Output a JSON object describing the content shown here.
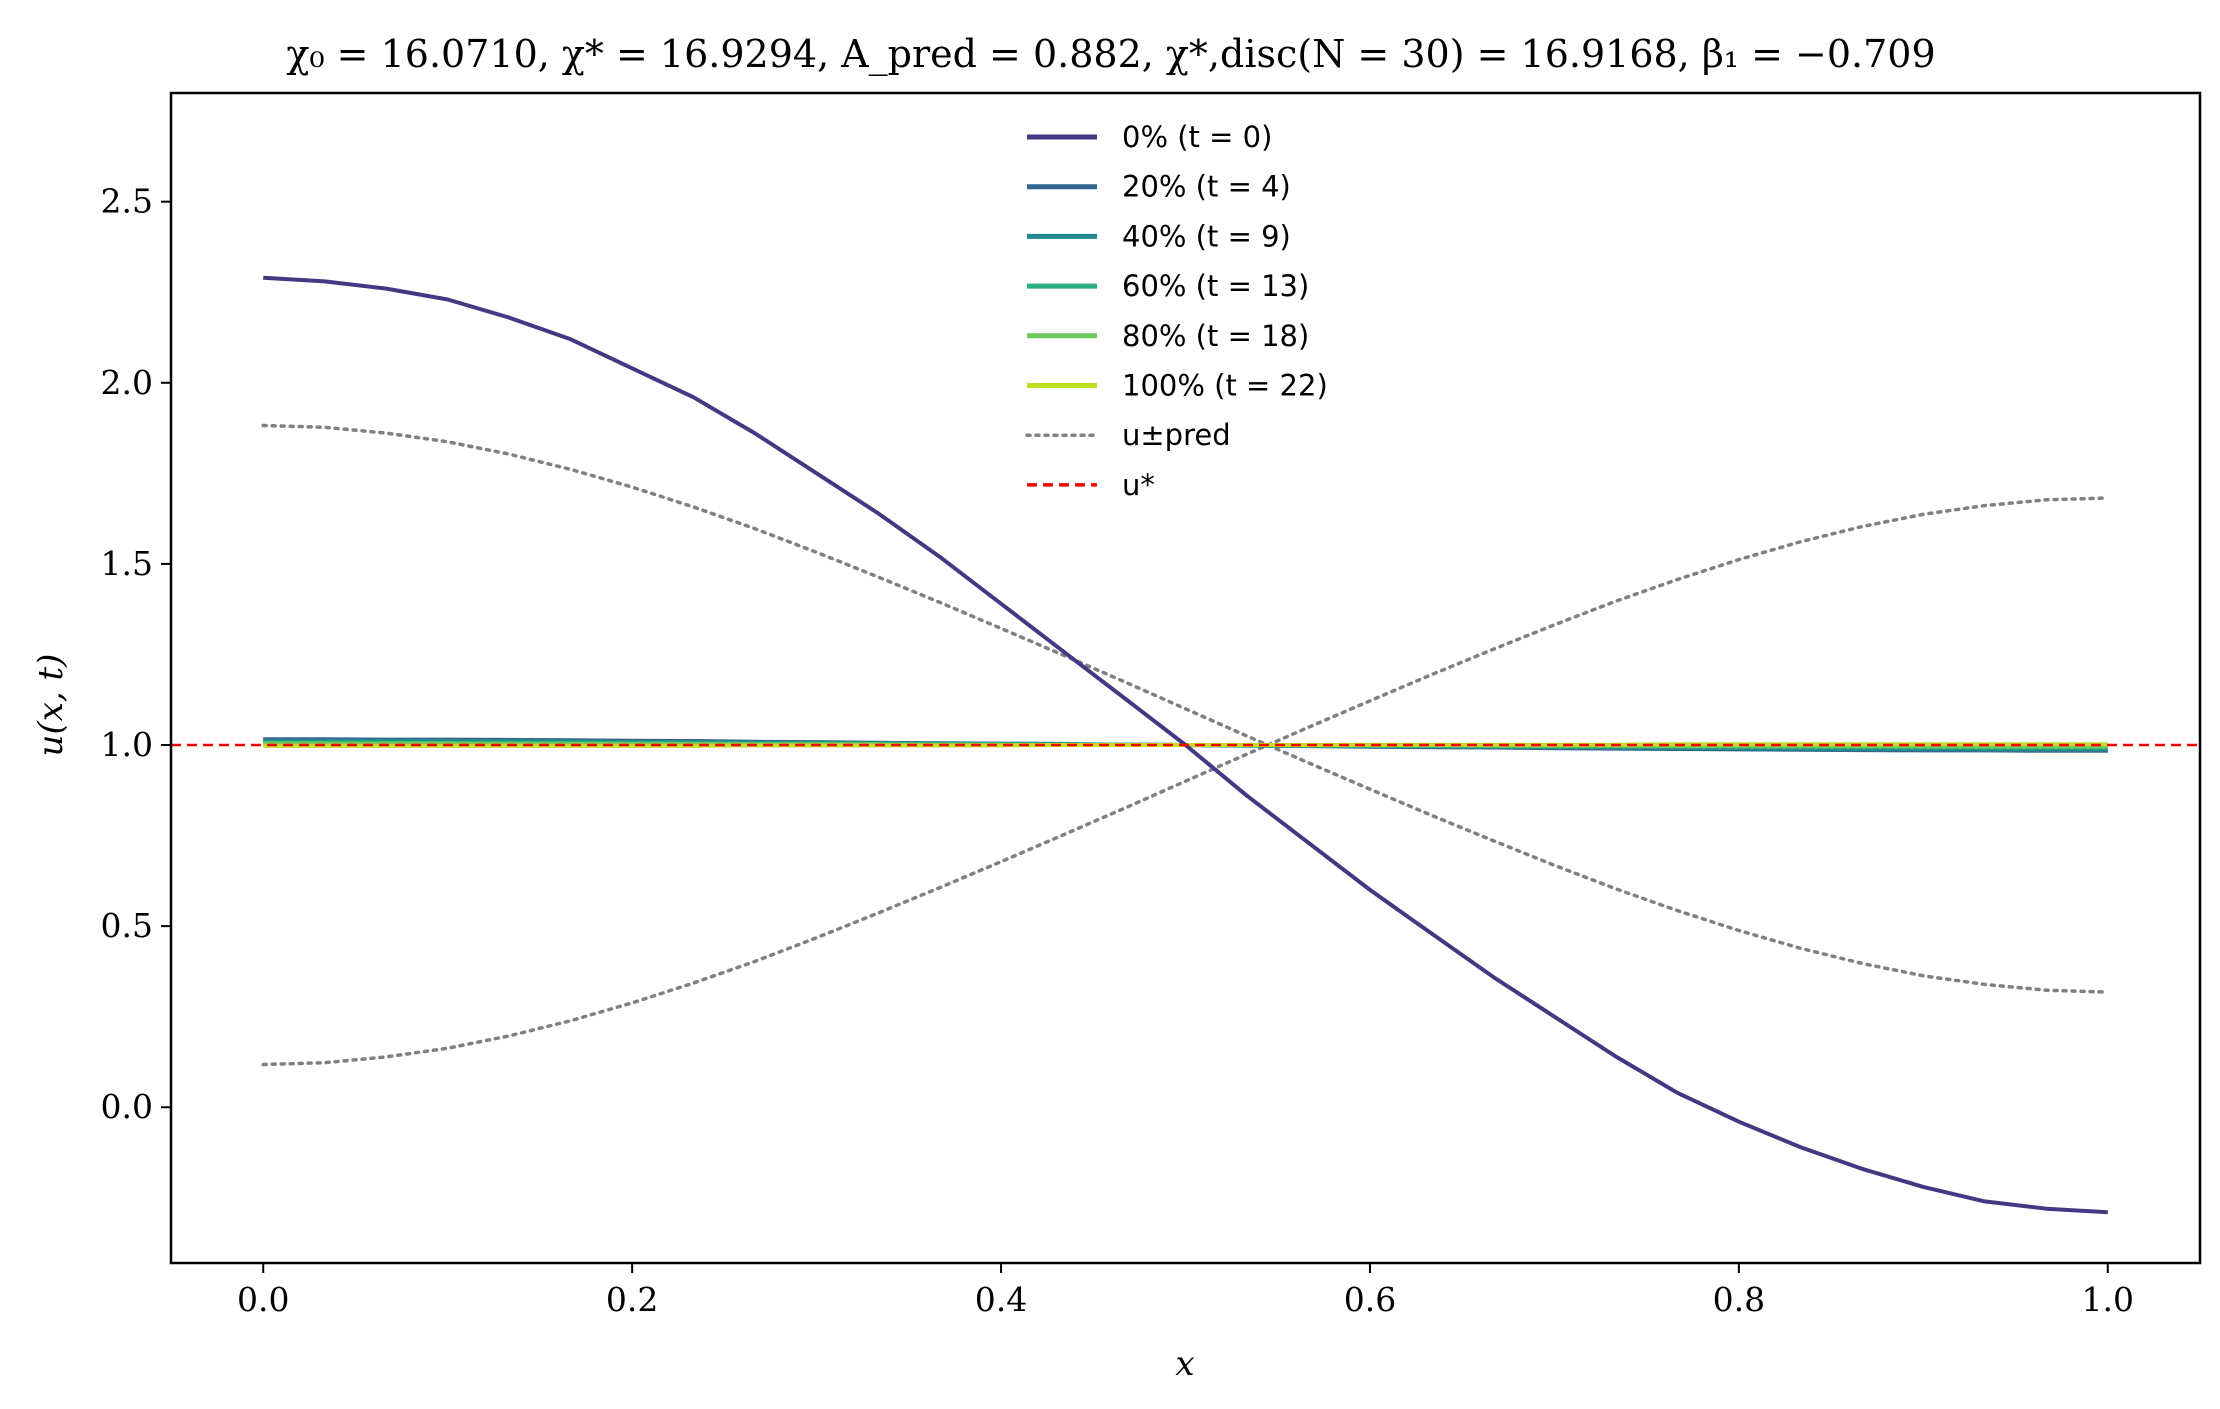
{
  "chart_data": {
    "type": "line",
    "title": "χ₀ = 16.0710,  χ* = 16.9294,  A_pred = 0.882,  χ*,disc(N = 30) = 16.9168,  β₁ = −0.709",
    "xlabel": "x",
    "ylabel": "u(x, t)",
    "xlim": [
      -0.05,
      1.05
    ],
    "ylim": [
      -0.43,
      2.8
    ],
    "x_ticks": [
      "0.0",
      "0.2",
      "0.4",
      "0.6",
      "0.8",
      "1.0"
    ],
    "y_ticks": [
      "0.0",
      "0.5",
      "1.0",
      "1.5",
      "2.0",
      "2.5"
    ],
    "grid": false,
    "legend_position": "top-center",
    "x": [
      0,
      0.0333,
      0.0667,
      0.1,
      0.1333,
      0.1667,
      0.2,
      0.2333,
      0.2667,
      0.3,
      0.3333,
      0.3667,
      0.4,
      0.4333,
      0.4667,
      0.5,
      0.5333,
      0.5667,
      0.6,
      0.6333,
      0.6667,
      0.7,
      0.7333,
      0.7667,
      0.8,
      0.8333,
      0.8667,
      0.9,
      0.9333,
      0.9667,
      1.0
    ],
    "series": [
      {
        "name": "0% (t = 0)",
        "color": "#433983",
        "style": "solid",
        "values": [
          2.29,
          2.28,
          2.26,
          2.23,
          2.18,
          2.12,
          2.04,
          1.96,
          1.86,
          1.75,
          1.64,
          1.52,
          1.39,
          1.26,
          1.13,
          1.0,
          0.86,
          0.73,
          0.6,
          0.48,
          0.36,
          0.25,
          0.14,
          0.04,
          -0.04,
          -0.11,
          -0.17,
          -0.22,
          -0.26,
          -0.28,
          -0.29
        ]
      },
      {
        "name": "20% (t = 4)",
        "color": "#31668d",
        "style": "solid",
        "values": [
          1.016,
          1.016,
          1.015,
          1.015,
          1.014,
          1.013,
          1.012,
          1.011,
          1.009,
          1.008,
          1.006,
          1.005,
          1.004,
          1.003,
          1.001,
          1.0,
          0.998,
          0.997,
          0.995,
          0.994,
          0.993,
          0.991,
          0.99,
          0.989,
          0.988,
          0.987,
          0.986,
          0.985,
          0.985,
          0.984,
          0.984
        ]
      },
      {
        "name": "40% (t = 9)",
        "color": "#23878e",
        "style": "solid",
        "values": [
          1.012,
          1.012,
          1.012,
          1.011,
          1.011,
          1.01,
          1.009,
          1.008,
          1.007,
          1.006,
          1.005,
          1.004,
          1.003,
          1.002,
          1.001,
          1.0,
          0.999,
          0.998,
          0.997,
          0.996,
          0.995,
          0.994,
          0.993,
          0.992,
          0.991,
          0.99,
          0.989,
          0.989,
          0.988,
          0.988,
          0.988
        ]
      },
      {
        "name": "60% (t = 13)",
        "color": "#29ae7f",
        "style": "solid",
        "values": [
          1.007,
          1.007,
          1.007,
          1.006,
          1.006,
          1.006,
          1.005,
          1.005,
          1.004,
          1.004,
          1.003,
          1.002,
          1.002,
          1.001,
          1.001,
          1.0,
          0.999,
          0.999,
          0.998,
          0.998,
          0.997,
          0.996,
          0.996,
          0.995,
          0.995,
          0.994,
          0.994,
          0.994,
          0.993,
          0.993,
          0.993
        ]
      },
      {
        "name": "80% (t = 18)",
        "color": "#6cc95c",
        "style": "solid",
        "values": [
          1.004,
          1.004,
          1.004,
          1.004,
          1.003,
          1.003,
          1.003,
          1.003,
          1.002,
          1.002,
          1.002,
          1.001,
          1.001,
          1.001,
          1.0,
          1.0,
          1.0,
          0.999,
          0.999,
          0.999,
          0.998,
          0.998,
          0.998,
          0.997,
          0.997,
          0.997,
          0.997,
          0.996,
          0.996,
          0.996,
          0.996
        ]
      },
      {
        "name": "100% (t = 22)",
        "color": "#bddf26",
        "style": "solid",
        "values": [
          0.998,
          0.998,
          0.998,
          0.998,
          0.998,
          0.998,
          0.998,
          0.998,
          0.999,
          0.999,
          0.999,
          0.999,
          0.999,
          1.0,
          1.0,
          1.0,
          1.0,
          1.0,
          1.001,
          1.001,
          1.001,
          1.001,
          1.001,
          1.002,
          1.002,
          1.002,
          1.002,
          1.002,
          1.002,
          1.002,
          1.002
        ]
      },
      {
        "name": "u±pred",
        "color": "#808080",
        "style": "dotted",
        "values": [
          1.882,
          1.877,
          1.861,
          1.837,
          1.803,
          1.761,
          1.712,
          1.657,
          1.597,
          1.532,
          1.464,
          1.394,
          1.322,
          1.249,
          1.175,
          1.1,
          1.025,
          0.951,
          0.878,
          0.806,
          0.736,
          0.668,
          0.603,
          0.543,
          0.488,
          0.439,
          0.397,
          0.363,
          0.339,
          0.323,
          0.318
        ]
      },
      {
        "name": "u±pred",
        "color": "#808080",
        "style": "dotted",
        "legend": false,
        "values": [
          0.118,
          0.123,
          0.139,
          0.163,
          0.197,
          0.239,
          0.288,
          0.343,
          0.403,
          0.468,
          0.536,
          0.606,
          0.678,
          0.751,
          0.825,
          0.9,
          0.975,
          1.049,
          1.122,
          1.194,
          1.264,
          1.332,
          1.397,
          1.457,
          1.512,
          1.561,
          1.603,
          1.637,
          1.661,
          1.677,
          1.682
        ]
      },
      {
        "name": "u*",
        "color": "#ff0000",
        "style": "dashed",
        "hline": 1.0
      }
    ],
    "legend": [
      {
        "label": "0% (t = 0)",
        "color": "#433983",
        "style": "solid"
      },
      {
        "label": "20% (t = 4)",
        "color": "#31668d",
        "style": "solid"
      },
      {
        "label": "40% (t = 9)",
        "color": "#23878e",
        "style": "solid"
      },
      {
        "label": "60% (t = 13)",
        "color": "#29ae7f",
        "style": "solid"
      },
      {
        "label": "80% (t = 18)",
        "color": "#6cc95c",
        "style": "solid"
      },
      {
        "label": "100% (t = 22)",
        "color": "#bddf26",
        "style": "solid"
      },
      {
        "label": "u±pred",
        "color": "#808080",
        "style": "dotted"
      },
      {
        "label": "u*",
        "color": "#ff0000",
        "style": "dashed"
      }
    ]
  }
}
